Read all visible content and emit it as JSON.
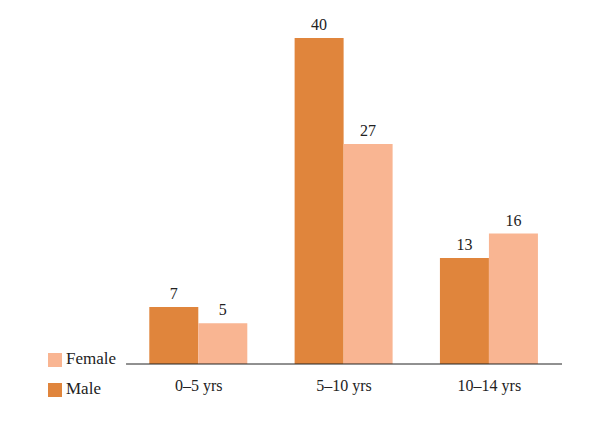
{
  "chart_data": {
    "type": "bar",
    "categories": [
      "0–5 yrs",
      "5–10 yrs",
      "10–14 yrs"
    ],
    "series": [
      {
        "name": "Male",
        "color": "#e0853c",
        "values": [
          7,
          40,
          13
        ]
      },
      {
        "name": "Female",
        "color": "#f9b592",
        "values": [
          5,
          27,
          16
        ]
      }
    ],
    "data_labels": true,
    "tick_labels": "x",
    "legend": "bottom-left"
  }
}
